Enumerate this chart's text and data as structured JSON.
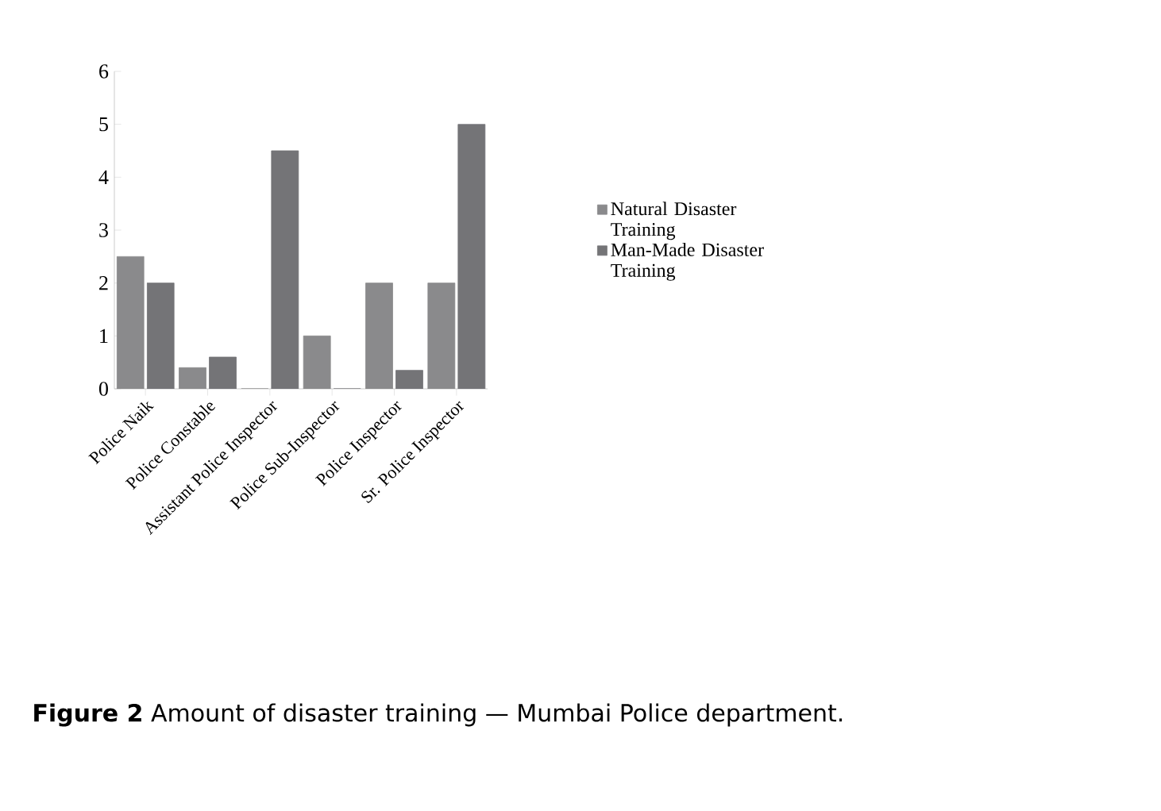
{
  "chart_data": {
    "type": "bar",
    "categories": [
      "Police Naik",
      "Police Constable",
      "Assistant Police Inspector",
      "Police Sub-Inspector",
      "Police Inspector",
      "Sr. Police Inspector"
    ],
    "series": [
      {
        "name": "Natural Disaster Training",
        "color": "#8a8a8c",
        "values": [
          2.5,
          0.4,
          0,
          1,
          2,
          2
        ]
      },
      {
        "name": "Man-Made Disaster Training",
        "color": "#747477",
        "values": [
          2,
          0.6,
          4.5,
          0,
          0.35,
          5
        ]
      }
    ],
    "ylim": [
      0,
      6
    ],
    "yticks": [
      0,
      1,
      2,
      3,
      4,
      5,
      6
    ],
    "grid": false,
    "legend": "right",
    "annotations": [
      "**Figure 2**  Amount of disaster training — Mumbai Police department."
    ]
  }
}
